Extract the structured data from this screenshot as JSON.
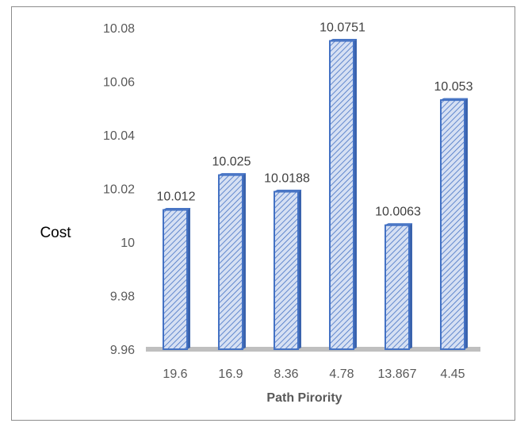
{
  "chart_data": {
    "type": "bar",
    "categories": [
      "19.6",
      "16.9",
      "8.36",
      "4.78",
      "13.867",
      "4.45"
    ],
    "values": [
      10.012,
      10.025,
      10.0188,
      10.0751,
      10.0063,
      10.053
    ],
    "value_labels": [
      "10.012",
      "10.025",
      "10.0188",
      "10.0751",
      "10.0063",
      "10.053"
    ],
    "xlabel": "Path Pirority",
    "ylabel": "Cost",
    "ylim": [
      9.96,
      10.08
    ],
    "yticks": [
      "9.96",
      "9.98",
      "10",
      "10.02",
      "10.04",
      "10.06",
      "10.08"
    ],
    "grid": false,
    "legend": "none",
    "bar_color": "#4472c4",
    "bar_fill": "#c5d3ee",
    "floor_color": "#bfbfbf"
  }
}
